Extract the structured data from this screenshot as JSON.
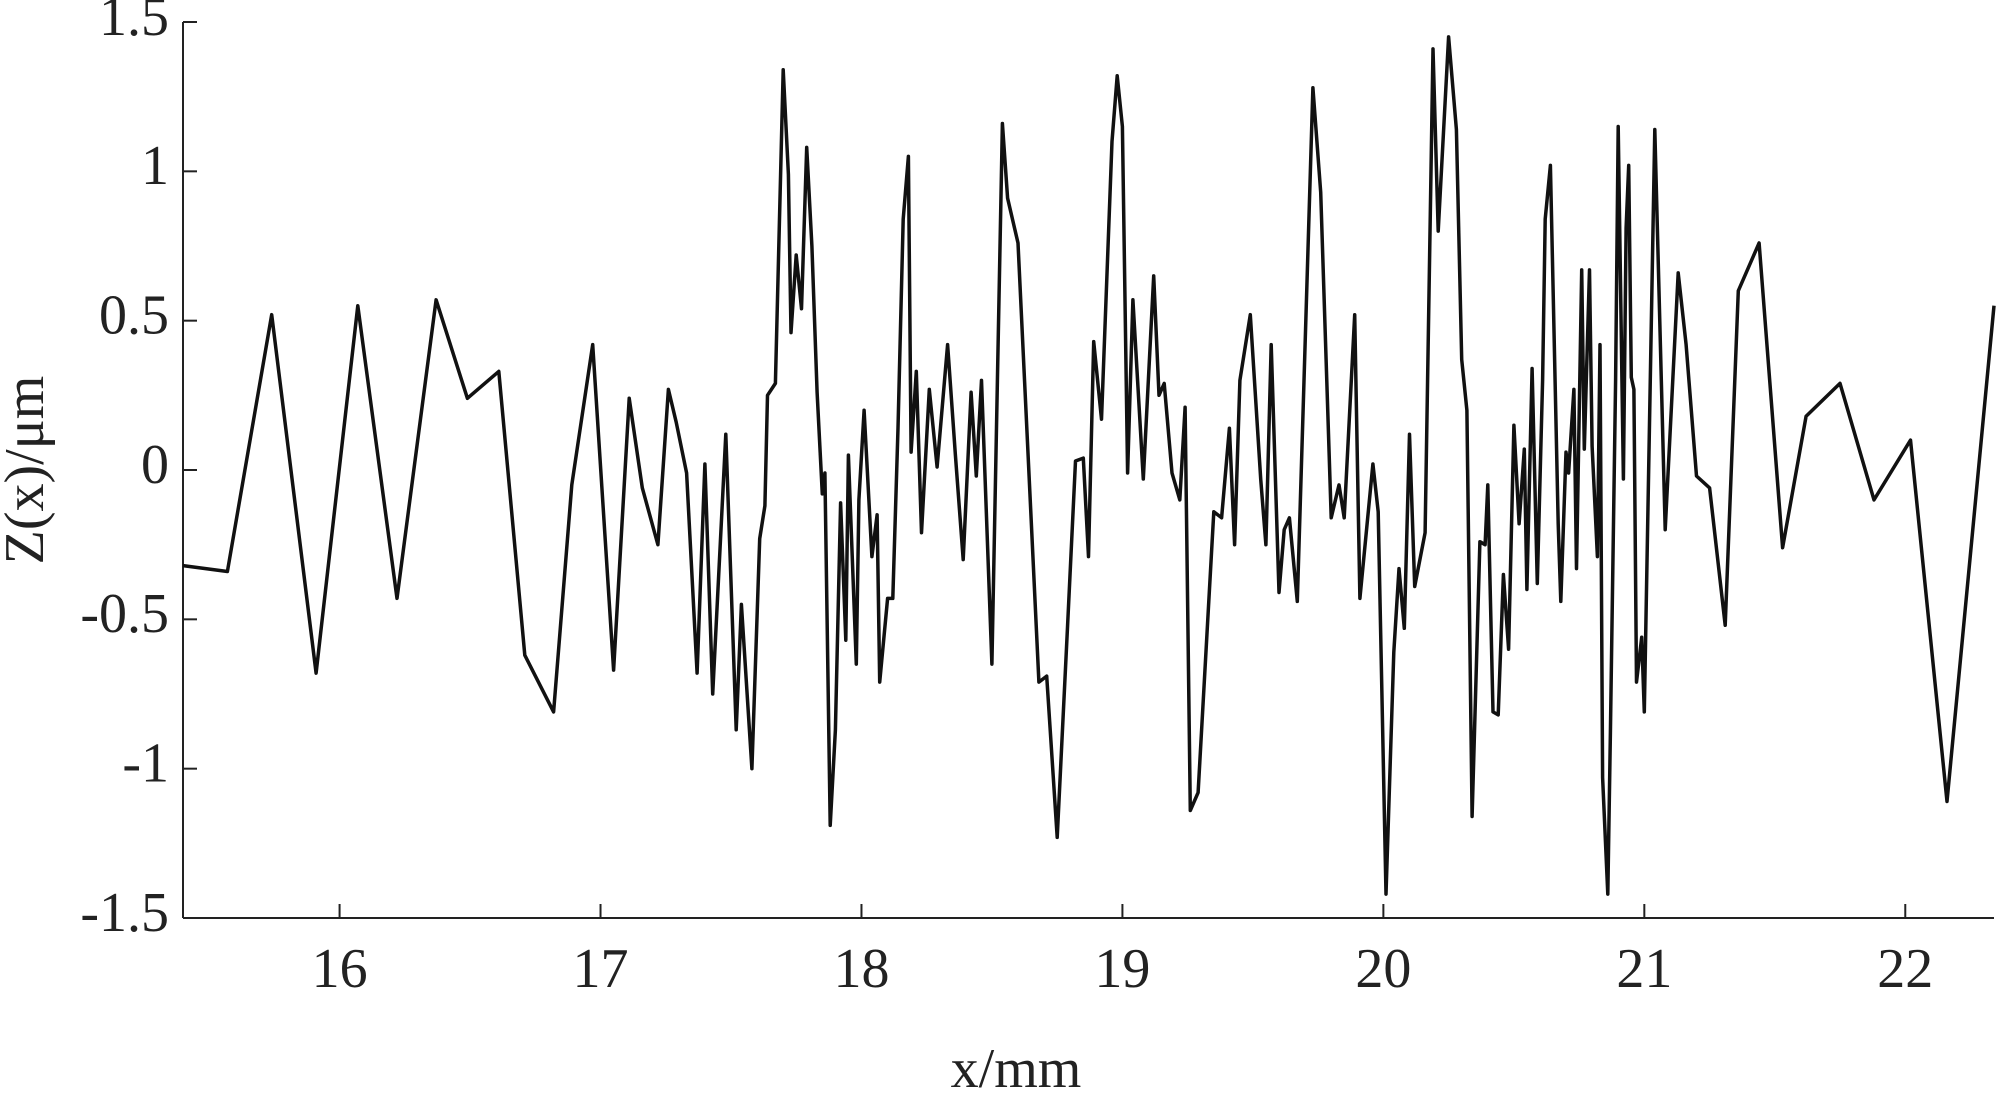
{
  "chart_data": {
    "type": "line",
    "x_label": "x/mm",
    "y_label": "Z(x)/μm",
    "xlim": [
      15.4,
      22.34
    ],
    "ylim": [
      -1.5,
      1.5
    ],
    "xticks": [
      16,
      17,
      18,
      19,
      20,
      21,
      22
    ],
    "yticks": [
      -1.5,
      -1,
      -0.5,
      0,
      0.5,
      1,
      1.5
    ],
    "color": "#111111",
    "x": [
      15.4,
      15.57,
      15.74,
      15.91,
      16.07,
      16.22,
      16.37,
      16.49,
      16.61,
      16.71,
      16.82,
      16.89,
      16.97,
      17.05,
      17.11,
      17.16,
      17.22,
      17.26,
      17.29,
      17.33,
      17.37,
      17.4,
      17.43,
      17.48,
      17.52,
      17.54,
      17.58,
      17.61,
      17.63,
      17.64,
      17.67,
      17.7,
      17.72,
      17.73,
      17.75,
      17.77,
      17.79,
      17.81,
      17.83,
      17.85,
      17.86,
      17.88,
      17.9,
      17.92,
      17.94,
      17.95,
      17.98,
      17.99,
      18.01,
      18.04,
      18.06,
      18.07,
      18.1,
      18.12,
      18.14,
      18.16,
      18.18,
      18.19,
      18.21,
      18.23,
      18.26,
      18.29,
      18.33,
      18.36,
      18.39,
      18.42,
      18.44,
      18.46,
      18.5,
      18.54,
      18.56,
      18.6,
      18.68,
      18.71,
      18.75,
      18.79,
      18.82,
      18.85,
      18.87,
      18.89,
      18.92,
      18.96,
      18.98,
      19.0,
      19.02,
      19.04,
      19.08,
      19.12,
      19.14,
      19.16,
      19.19,
      19.22,
      19.24,
      19.26,
      19.29,
      19.35,
      19.38,
      19.41,
      19.43,
      19.45,
      19.49,
      19.53,
      19.55,
      19.57,
      19.6,
      19.62,
      19.64,
      19.67,
      19.73,
      19.76,
      19.8,
      19.83,
      19.85,
      19.89,
      19.91,
      19.96,
      19.98,
      20.01,
      20.04,
      20.06,
      20.08,
      20.1,
      20.12,
      20.16,
      20.19,
      20.21,
      20.25,
      20.28,
      20.3,
      20.32,
      20.34,
      20.37,
      20.39,
      20.4,
      20.42,
      20.44,
      20.46,
      20.48,
      20.5,
      20.52,
      20.54,
      20.55,
      20.57,
      20.59,
      20.61,
      20.62,
      20.64,
      20.65,
      20.67,
      20.68,
      20.7,
      20.71,
      20.73,
      20.74,
      20.76,
      20.77,
      20.79,
      20.8,
      20.82,
      20.83,
      20.84,
      20.86,
      20.87,
      20.89,
      20.9,
      20.92,
      20.93,
      20.94,
      20.95,
      20.96,
      20.97,
      20.99,
      21.0,
      21.04,
      21.08,
      21.13,
      21.16,
      21.2,
      21.25,
      21.31,
      21.36,
      21.44,
      21.53,
      21.62,
      21.75,
      21.88,
      22.02,
      22.16,
      22.34
    ],
    "series": [
      {
        "values": [
          -0.32,
          -0.34,
          0.52,
          -0.68,
          0.55,
          -0.43,
          0.57,
          0.24,
          0.33,
          -0.62,
          -0.81,
          -0.05,
          0.42,
          -0.67,
          0.24,
          -0.06,
          -0.25,
          0.27,
          0.16,
          -0.01,
          -0.68,
          0.02,
          -0.75,
          0.12,
          -0.87,
          -0.45,
          -1.0,
          -0.23,
          -0.12,
          0.25,
          0.29,
          1.34,
          0.99,
          0.46,
          0.72,
          0.54,
          1.08,
          0.75,
          0.26,
          -0.08,
          -0.01,
          -1.19,
          -0.87,
          -0.11,
          -0.57,
          0.05,
          -0.65,
          -0.1,
          0.2,
          -0.29,
          -0.15,
          -0.71,
          -0.43,
          -0.43,
          0.14,
          0.84,
          1.05,
          0.06,
          0.33,
          -0.21,
          0.27,
          0.01,
          0.42,
          0.05,
          -0.3,
          0.26,
          -0.02,
          0.3,
          -0.65,
          1.16,
          0.91,
          0.76,
          -0.71,
          -0.69,
          -1.23,
          -0.52,
          0.03,
          0.04,
          -0.29,
          0.43,
          0.17,
          1.1,
          1.32,
          1.15,
          -0.01,
          0.57,
          -0.03,
          0.65,
          0.25,
          0.29,
          -0.01,
          -0.1,
          0.21,
          -1.14,
          -1.08,
          -0.14,
          -0.16,
          0.14,
          -0.25,
          0.3,
          0.52,
          -0.03,
          -0.25,
          0.42,
          -0.41,
          -0.2,
          -0.16,
          -0.44,
          1.28,
          0.93,
          -0.16,
          -0.05,
          -0.16,
          0.52,
          -0.43,
          0.02,
          -0.14,
          -1.42,
          -0.61,
          -0.33,
          -0.53,
          0.12,
          -0.39,
          -0.21,
          1.41,
          0.8,
          1.45,
          1.14,
          0.37,
          0.2,
          -1.16,
          -0.24,
          -0.25,
          -0.05,
          -0.81,
          -0.82,
          -0.35,
          -0.6,
          0.15,
          -0.18,
          0.07,
          -0.4,
          0.34,
          -0.38,
          0.3,
          0.84,
          1.02,
          0.62,
          -0.18,
          -0.44,
          0.06,
          -0.01,
          0.27,
          -0.33,
          0.67,
          0.07,
          0.67,
          0.08,
          -0.29,
          0.42,
          -1.03,
          -1.42,
          -0.88,
          0.3,
          1.15,
          -0.03,
          0.81,
          1.02,
          0.31,
          0.27,
          -0.71,
          -0.56,
          -0.81,
          1.14,
          -0.2,
          0.66,
          0.42,
          -0.02,
          -0.06,
          -0.52,
          0.6,
          0.76,
          -0.26,
          0.18,
          0.29,
          -0.1,
          0.1,
          -1.11,
          0.55
        ]
      }
    ]
  }
}
